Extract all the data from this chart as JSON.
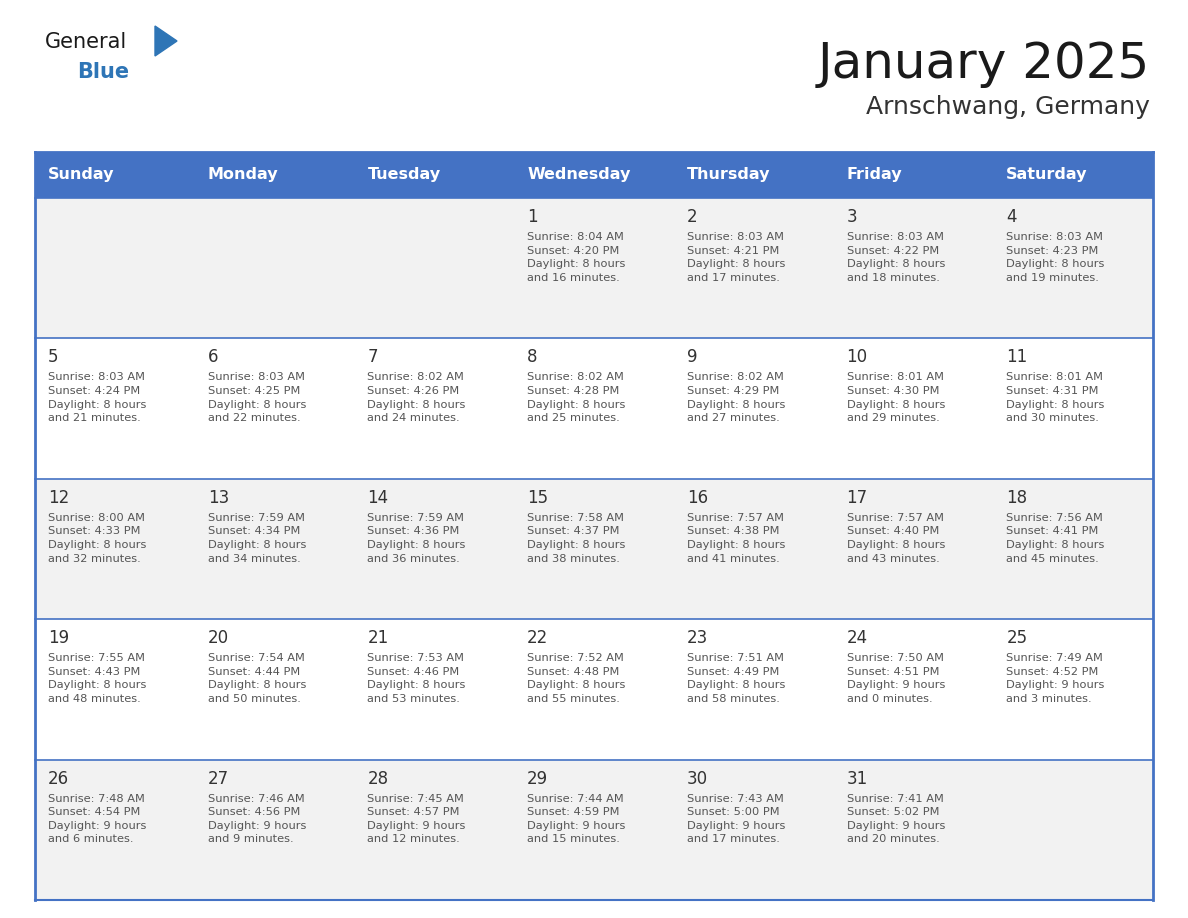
{
  "title": "January 2025",
  "subtitle": "Arnschwang, Germany",
  "days_of_week": [
    "Sunday",
    "Monday",
    "Tuesday",
    "Wednesday",
    "Thursday",
    "Friday",
    "Saturday"
  ],
  "header_bg": "#4472C4",
  "header_text": "#FFFFFF",
  "cell_bg_odd": "#F2F2F2",
  "cell_bg_even": "#FFFFFF",
  "day_number_color": "#333333",
  "info_text_color": "#555555",
  "border_color": "#4472C4",
  "row_line_color": "#4472C4",
  "title_color": "#1a1a1a",
  "subtitle_color": "#333333",
  "logo_general_color": "#1a1a1a",
  "logo_blue_color": "#2E75B6",
  "logo_triangle_color": "#2E75B6",
  "weeks": [
    [
      {
        "day": null,
        "info": ""
      },
      {
        "day": null,
        "info": ""
      },
      {
        "day": null,
        "info": ""
      },
      {
        "day": 1,
        "info": "Sunrise: 8:04 AM\nSunset: 4:20 PM\nDaylight: 8 hours\nand 16 minutes."
      },
      {
        "day": 2,
        "info": "Sunrise: 8:03 AM\nSunset: 4:21 PM\nDaylight: 8 hours\nand 17 minutes."
      },
      {
        "day": 3,
        "info": "Sunrise: 8:03 AM\nSunset: 4:22 PM\nDaylight: 8 hours\nand 18 minutes."
      },
      {
        "day": 4,
        "info": "Sunrise: 8:03 AM\nSunset: 4:23 PM\nDaylight: 8 hours\nand 19 minutes."
      }
    ],
    [
      {
        "day": 5,
        "info": "Sunrise: 8:03 AM\nSunset: 4:24 PM\nDaylight: 8 hours\nand 21 minutes."
      },
      {
        "day": 6,
        "info": "Sunrise: 8:03 AM\nSunset: 4:25 PM\nDaylight: 8 hours\nand 22 minutes."
      },
      {
        "day": 7,
        "info": "Sunrise: 8:02 AM\nSunset: 4:26 PM\nDaylight: 8 hours\nand 24 minutes."
      },
      {
        "day": 8,
        "info": "Sunrise: 8:02 AM\nSunset: 4:28 PM\nDaylight: 8 hours\nand 25 minutes."
      },
      {
        "day": 9,
        "info": "Sunrise: 8:02 AM\nSunset: 4:29 PM\nDaylight: 8 hours\nand 27 minutes."
      },
      {
        "day": 10,
        "info": "Sunrise: 8:01 AM\nSunset: 4:30 PM\nDaylight: 8 hours\nand 29 minutes."
      },
      {
        "day": 11,
        "info": "Sunrise: 8:01 AM\nSunset: 4:31 PM\nDaylight: 8 hours\nand 30 minutes."
      }
    ],
    [
      {
        "day": 12,
        "info": "Sunrise: 8:00 AM\nSunset: 4:33 PM\nDaylight: 8 hours\nand 32 minutes."
      },
      {
        "day": 13,
        "info": "Sunrise: 7:59 AM\nSunset: 4:34 PM\nDaylight: 8 hours\nand 34 minutes."
      },
      {
        "day": 14,
        "info": "Sunrise: 7:59 AM\nSunset: 4:36 PM\nDaylight: 8 hours\nand 36 minutes."
      },
      {
        "day": 15,
        "info": "Sunrise: 7:58 AM\nSunset: 4:37 PM\nDaylight: 8 hours\nand 38 minutes."
      },
      {
        "day": 16,
        "info": "Sunrise: 7:57 AM\nSunset: 4:38 PM\nDaylight: 8 hours\nand 41 minutes."
      },
      {
        "day": 17,
        "info": "Sunrise: 7:57 AM\nSunset: 4:40 PM\nDaylight: 8 hours\nand 43 minutes."
      },
      {
        "day": 18,
        "info": "Sunrise: 7:56 AM\nSunset: 4:41 PM\nDaylight: 8 hours\nand 45 minutes."
      }
    ],
    [
      {
        "day": 19,
        "info": "Sunrise: 7:55 AM\nSunset: 4:43 PM\nDaylight: 8 hours\nand 48 minutes."
      },
      {
        "day": 20,
        "info": "Sunrise: 7:54 AM\nSunset: 4:44 PM\nDaylight: 8 hours\nand 50 minutes."
      },
      {
        "day": 21,
        "info": "Sunrise: 7:53 AM\nSunset: 4:46 PM\nDaylight: 8 hours\nand 53 minutes."
      },
      {
        "day": 22,
        "info": "Sunrise: 7:52 AM\nSunset: 4:48 PM\nDaylight: 8 hours\nand 55 minutes."
      },
      {
        "day": 23,
        "info": "Sunrise: 7:51 AM\nSunset: 4:49 PM\nDaylight: 8 hours\nand 58 minutes."
      },
      {
        "day": 24,
        "info": "Sunrise: 7:50 AM\nSunset: 4:51 PM\nDaylight: 9 hours\nand 0 minutes."
      },
      {
        "day": 25,
        "info": "Sunrise: 7:49 AM\nSunset: 4:52 PM\nDaylight: 9 hours\nand 3 minutes."
      }
    ],
    [
      {
        "day": 26,
        "info": "Sunrise: 7:48 AM\nSunset: 4:54 PM\nDaylight: 9 hours\nand 6 minutes."
      },
      {
        "day": 27,
        "info": "Sunrise: 7:46 AM\nSunset: 4:56 PM\nDaylight: 9 hours\nand 9 minutes."
      },
      {
        "day": 28,
        "info": "Sunrise: 7:45 AM\nSunset: 4:57 PM\nDaylight: 9 hours\nand 12 minutes."
      },
      {
        "day": 29,
        "info": "Sunrise: 7:44 AM\nSunset: 4:59 PM\nDaylight: 9 hours\nand 15 minutes."
      },
      {
        "day": 30,
        "info": "Sunrise: 7:43 AM\nSunset: 5:00 PM\nDaylight: 9 hours\nand 17 minutes."
      },
      {
        "day": 31,
        "info": "Sunrise: 7:41 AM\nSunset: 5:02 PM\nDaylight: 9 hours\nand 20 minutes."
      },
      {
        "day": null,
        "info": ""
      }
    ]
  ],
  "fig_width": 11.88,
  "fig_height": 9.18,
  "dpi": 100
}
